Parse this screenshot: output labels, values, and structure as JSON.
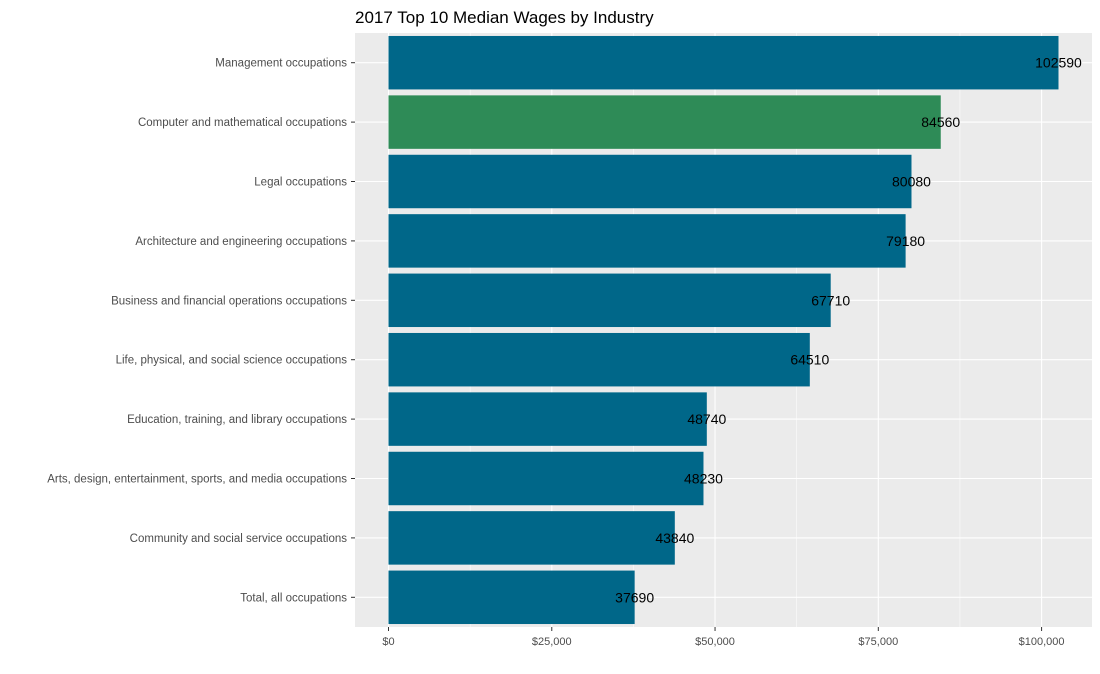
{
  "chart_data": {
    "type": "bar",
    "orientation": "horizontal",
    "title": "2017 Top 10 Median Wages by Industry",
    "xlabel": "",
    "ylabel": "",
    "categories": [
      "Management occupations",
      "Computer and mathematical occupations",
      "Legal occupations",
      "Architecture and engineering occupations",
      "Business and financial operations occupations",
      "Life, physical, and social science occupations",
      "Education, training, and library occupations",
      "Arts, design, entertainment, sports, and media occupations",
      "Community and social service occupations",
      "Total, all occupations"
    ],
    "values": [
      102590,
      84560,
      80080,
      79180,
      67710,
      64510,
      48740,
      48230,
      43840,
      37690
    ],
    "data_labels": [
      "102590",
      "84560",
      "80080",
      "79180",
      "67710",
      "64510",
      "48740",
      "48230",
      "43840",
      "37690"
    ],
    "highlight": [
      false,
      true,
      false,
      false,
      false,
      false,
      false,
      false,
      false,
      false
    ],
    "xlim": [
      -5130,
      107720
    ],
    "x_ticks": [
      0,
      25000,
      50000,
      75000,
      100000
    ],
    "x_tick_labels": [
      "$0",
      "$25,000",
      "$50,000",
      "$75,000",
      "$100,000"
    ],
    "grid": true,
    "legend": "none",
    "colors": {
      "bar": "#006789",
      "highlight": "#2e8b57",
      "panel": "#ebebeb",
      "grid": "#ffffff"
    }
  }
}
